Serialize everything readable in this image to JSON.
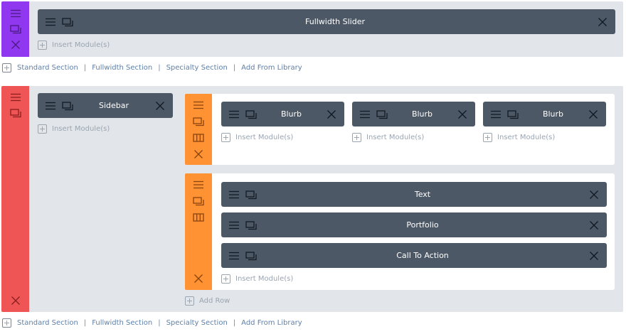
{
  "colors": {
    "section1_handle": "#9038f0",
    "section2_handle": "#ef5555",
    "row_handle": "#ff9232",
    "module_bg": "#4c5866",
    "section_bg": "#e2e5e9"
  },
  "insert_module": "Insert Module(s)",
  "add_row": "Add Row",
  "section_links": [
    "Standard Section",
    "Fullwidth Section",
    "Specialty Section",
    "Add From Library"
  ],
  "section1": {
    "modules": [
      "Fullwidth Slider"
    ]
  },
  "section2": {
    "sidebar_modules": [
      "Sidebar"
    ],
    "row1": {
      "modules": [
        "Blurb",
        "Blurb",
        "Blurb"
      ]
    },
    "row2": {
      "modules": [
        "Text",
        "Portfolio",
        "Call To Action"
      ]
    }
  },
  "icons": [
    "menu-icon",
    "duplicate-icon",
    "columns-icon",
    "close-icon",
    "plus-icon"
  ]
}
